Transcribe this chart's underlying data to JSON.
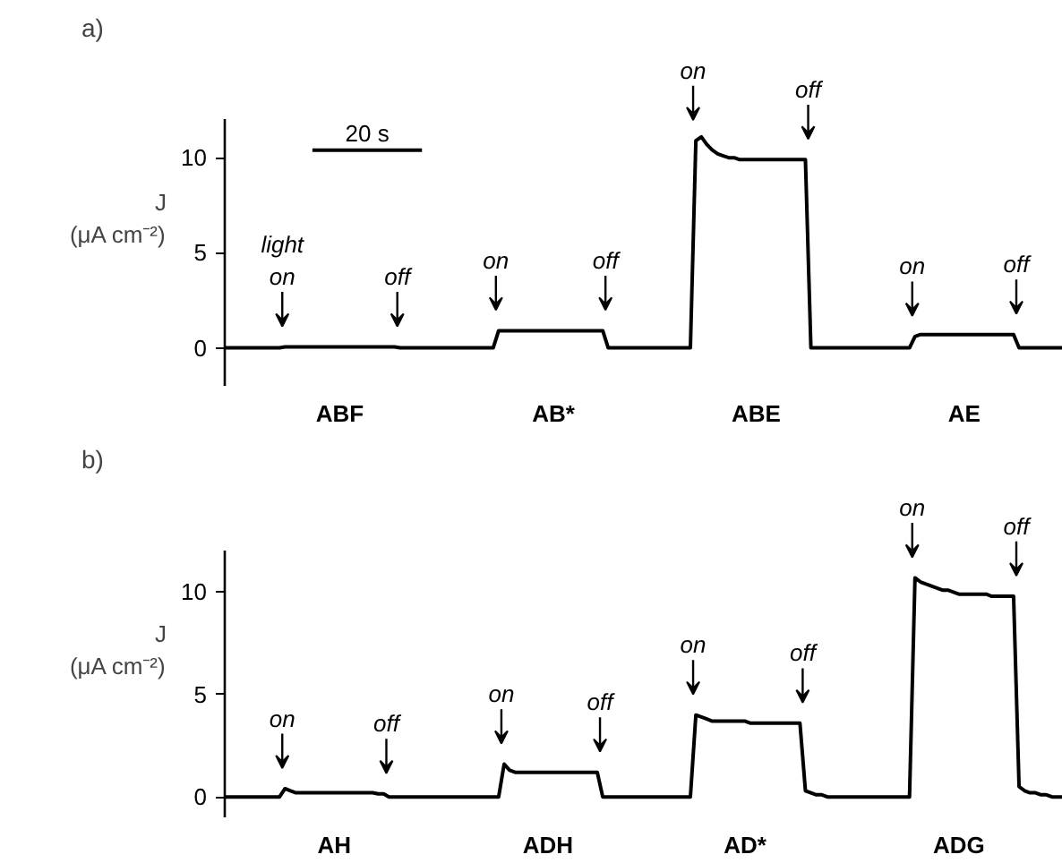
{
  "chart_data": [
    {
      "type": "line",
      "title": "a)",
      "ylabel": "J (μA cm⁻²)",
      "ylim": [
        -2,
        12
      ],
      "yticks": [
        0,
        5,
        10
      ],
      "grid": false,
      "categories": [
        null,
        null,
        null,
        null,
        null,
        null,
        null,
        null,
        null,
        null,
        null,
        null,
        null,
        null,
        null,
        null,
        null,
        null,
        null,
        null,
        null,
        "ABF",
        null,
        null,
        null,
        null,
        null,
        null,
        null,
        null,
        null,
        null,
        null,
        null,
        null,
        null,
        null,
        null,
        null,
        null,
        null,
        null,
        null,
        null,
        null,
        null,
        null,
        null,
        null,
        null,
        null,
        null,
        null,
        null,
        null,
        null,
        null,
        null,
        null,
        null,
        "AB*",
        null,
        null,
        null,
        null,
        null,
        null,
        null,
        null,
        null,
        null,
        null,
        null,
        null,
        null,
        null,
        null,
        null,
        null,
        null,
        null,
        null,
        null,
        null,
        null,
        null,
        null,
        null,
        null,
        null,
        null,
        null,
        null,
        null,
        null,
        null,
        null,
        "ABE",
        null,
        null,
        null,
        null,
        null,
        null,
        null,
        null,
        null,
        null,
        null,
        null,
        null,
        null,
        null,
        null,
        null,
        null,
        null,
        null,
        null,
        null,
        null,
        null,
        null,
        null,
        null,
        null,
        null,
        null,
        null,
        null,
        null,
        null,
        null,
        null,
        null,
        "AE",
        null,
        null,
        null,
        null,
        null,
        null,
        null,
        null,
        null,
        null,
        null,
        null,
        null,
        null,
        null,
        null,
        null,
        null
      ],
      "series": [
        {
          "color": "#000000",
          "values": [
            0,
            0,
            0,
            0,
            0,
            0,
            0,
            0,
            0,
            0,
            0,
            0.05,
            0.05,
            0.05,
            0.05,
            0.05,
            0.05,
            0.05,
            0.05,
            0.05,
            0.05,
            0.05,
            0.05,
            0.05,
            0.05,
            0.05,
            0.05,
            0.05,
            0.05,
            0.05,
            0.05,
            0.05,
            0,
            0,
            0,
            0,
            0,
            0,
            0,
            0,
            0,
            0,
            0,
            0,
            0,
            0,
            0,
            0,
            0,
            0,
            0.9,
            0.9,
            0.9,
            0.9,
            0.9,
            0.9,
            0.9,
            0.9,
            0.9,
            0.9,
            0.9,
            0.9,
            0.9,
            0.9,
            0.9,
            0.9,
            0.9,
            0.9,
            0.9,
            0.9,
            0,
            0,
            0,
            0,
            0,
            0,
            0,
            0,
            0,
            0,
            0,
            0,
            0,
            0,
            0,
            0,
            10.9,
            11.1,
            10.7,
            10.4,
            10.2,
            10.1,
            10,
            10,
            9.9,
            9.9,
            9.9,
            9.9,
            9.9,
            9.9,
            9.9,
            9.9,
            9.9,
            9.9,
            9.9,
            9.9,
            9.9,
            0,
            0,
            0,
            0,
            0,
            0,
            0,
            0,
            0,
            0,
            0,
            0,
            0,
            0,
            0,
            0,
            0,
            0,
            0,
            0.6,
            0.7,
            0.7,
            0.7,
            0.7,
            0.7,
            0.7,
            0.7,
            0.7,
            0.7,
            0.7,
            0.7,
            0.7,
            0.7,
            0.7,
            0.7,
            0.7,
            0.7,
            0.7,
            0,
            0,
            0,
            0,
            0,
            0,
            0,
            0,
            0
          ]
        },
        {
          "name": "20 s",
          "color": "#000000",
          "values": [
            null,
            null,
            null,
            null,
            null,
            null,
            null,
            null,
            null,
            null,
            null,
            null,
            null,
            null,
            null,
            null,
            10.4,
            10.4,
            10.4,
            10.4,
            10.4,
            10.4,
            10.4,
            10.4,
            10.4,
            10.4,
            10.4,
            10.4,
            10.4,
            10.4,
            10.4,
            10.4,
            10.4,
            10.4,
            10.4,
            10.4,
            10.4,
            null,
            null,
            null,
            null,
            null,
            null,
            null,
            null,
            null,
            null,
            null,
            null,
            null,
            null,
            null,
            null,
            null,
            null,
            null,
            null,
            null,
            null,
            null,
            null,
            null,
            null,
            null,
            null,
            null,
            null,
            null,
            null,
            null,
            null,
            null,
            null,
            null,
            null,
            null,
            null,
            null,
            null,
            null,
            null,
            null,
            null,
            null,
            null,
            null,
            null,
            null,
            null,
            null,
            null,
            null,
            null,
            null,
            null,
            null,
            null,
            null,
            null,
            null,
            null,
            null,
            null,
            null,
            null,
            null,
            null,
            null,
            null,
            null,
            null,
            null,
            null,
            null,
            null,
            null,
            null,
            null,
            null,
            null,
            null,
            null,
            null,
            null,
            null,
            null,
            null,
            null,
            null,
            null,
            null,
            null,
            null,
            null,
            null,
            null,
            null,
            null,
            null,
            null,
            null,
            null,
            null,
            null,
            null,
            null,
            null,
            null,
            null,
            null,
            null,
            null,
            null,
            null
          ]
        }
      ],
      "annotations": [
        "light\non",
        "off",
        "on",
        "off",
        "on",
        "off",
        "on",
        "off"
      ]
    },
    {
      "type": "line",
      "title": "b)",
      "ylabel": "J (μA cm⁻²)",
      "ylim": [
        -1,
        12
      ],
      "yticks": [
        0,
        5,
        10
      ],
      "grid": false,
      "categories": [
        null,
        null,
        null,
        null,
        null,
        null,
        null,
        null,
        null,
        null,
        null,
        null,
        null,
        null,
        null,
        null,
        null,
        null,
        null,
        null,
        "AH",
        null,
        null,
        null,
        null,
        null,
        null,
        null,
        null,
        null,
        null,
        null,
        null,
        null,
        null,
        null,
        null,
        null,
        null,
        null,
        null,
        null,
        null,
        null,
        null,
        null,
        null,
        null,
        null,
        null,
        null,
        null,
        null,
        null,
        null,
        null,
        null,
        null,
        null,
        "ADH",
        null,
        null,
        null,
        null,
        null,
        null,
        null,
        null,
        null,
        null,
        null,
        null,
        null,
        null,
        null,
        null,
        null,
        null,
        null,
        null,
        null,
        null,
        null,
        null,
        null,
        null,
        null,
        null,
        null,
        null,
        null,
        null,
        null,
        null,
        null,
        "AD*",
        null,
        null,
        null,
        null,
        null,
        null,
        null,
        null,
        null,
        null,
        null,
        null,
        null,
        null,
        null,
        null,
        null,
        null,
        null,
        null,
        null,
        null,
        null,
        null,
        null,
        null,
        null,
        null,
        null,
        null,
        null,
        null,
        null,
        null,
        null,
        null,
        null,
        null,
        "ADG",
        null,
        null,
        null,
        null,
        null,
        null,
        null,
        null,
        null,
        null,
        null,
        null,
        null,
        null,
        null,
        null,
        null,
        null,
        null
      ],
      "series": [
        {
          "color": "#000000",
          "values": [
            0,
            0,
            0,
            0,
            0,
            0,
            0,
            0,
            0,
            0,
            0,
            0.4,
            0.3,
            0.2,
            0.2,
            0.2,
            0.2,
            0.2,
            0.2,
            0.2,
            0.2,
            0.2,
            0.2,
            0.2,
            0.2,
            0.2,
            0.2,
            0.2,
            0.15,
            0.15,
            0,
            0,
            0,
            0,
            0,
            0,
            0,
            0,
            0,
            0,
            0,
            0,
            0,
            0,
            0,
            0,
            0,
            0,
            0,
            0,
            0,
            1.6,
            1.3,
            1.2,
            1.2,
            1.2,
            1.2,
            1.2,
            1.2,
            1.2,
            1.2,
            1.2,
            1.2,
            1.2,
            1.2,
            1.2,
            1.2,
            1.2,
            1.2,
            0,
            0,
            0,
            0,
            0,
            0,
            0,
            0,
            0,
            0,
            0,
            0,
            0,
            0,
            0,
            0,
            0,
            4.0,
            3.9,
            3.8,
            3.7,
            3.7,
            3.7,
            3.7,
            3.7,
            3.7,
            3.7,
            3.6,
            3.6,
            3.6,
            3.6,
            3.6,
            3.6,
            3.6,
            3.6,
            3.6,
            3.6,
            0.3,
            0.2,
            0.1,
            0.1,
            0,
            0,
            0,
            0,
            0,
            0,
            0,
            0,
            0,
            0,
            0,
            0,
            0,
            0,
            0,
            0,
            10.7,
            10.5,
            10.4,
            10.3,
            10.2,
            10.1,
            10.1,
            10.0,
            9.9,
            9.9,
            9.9,
            9.9,
            9.9,
            9.9,
            9.8,
            9.8,
            9.8,
            9.8,
            9.8,
            0.5,
            0.3,
            0.2,
            0.2,
            0.1,
            0.1,
            0,
            0,
            0
          ]
        }
      ],
      "annotations": [
        "on",
        "off",
        "on",
        "off",
        "on",
        "off",
        "on",
        "off"
      ]
    }
  ]
}
